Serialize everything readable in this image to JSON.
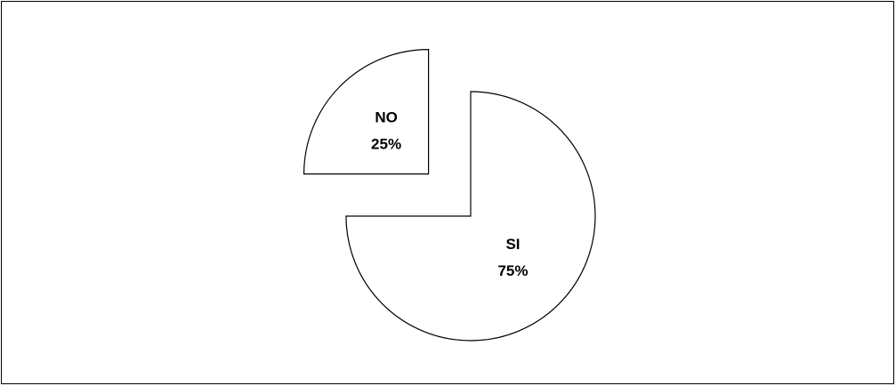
{
  "chart_data": {
    "type": "pie",
    "categories": [
      "SI",
      "NO"
    ],
    "values": [
      75,
      25
    ],
    "value_labels": [
      "75%",
      "25%"
    ],
    "colors": [
      "#ffffff",
      "#ffffff"
    ]
  }
}
